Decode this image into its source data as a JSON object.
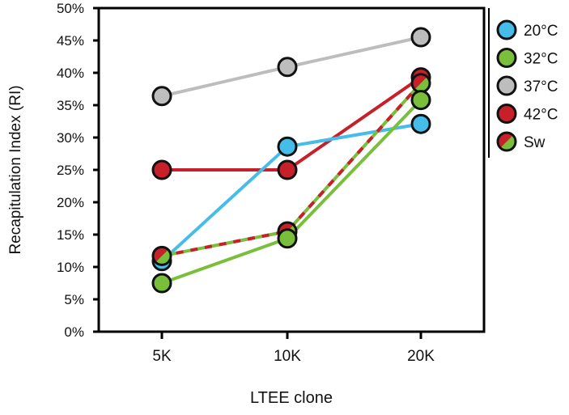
{
  "chart_data": {
    "type": "line",
    "title": "",
    "xlabel": "LTEE clone",
    "ylabel": "Recapitulation Index (RI)",
    "categories": [
      "5K",
      "10K",
      "20K"
    ],
    "ylim": [
      0,
      50
    ],
    "yticks": [
      0,
      5,
      10,
      15,
      20,
      25,
      30,
      35,
      40,
      45,
      50
    ],
    "ytick_labels": [
      "0%",
      "5%",
      "10%",
      "15%",
      "20%",
      "25%",
      "30%",
      "35%",
      "40%",
      "45%",
      "50%"
    ],
    "grid": false,
    "legend_position": "right",
    "series": [
      {
        "name": "37°C",
        "color": "#bdbdbd",
        "values": [
          36.4,
          40.9,
          45.5
        ]
      },
      {
        "name": "42°C",
        "color": "#c8202a",
        "values": [
          25.0,
          25.0,
          39.3
        ]
      },
      {
        "name": "20°C",
        "color": "#45bde8",
        "values": [
          10.9,
          28.6,
          32.1
        ]
      },
      {
        "name": "Sw",
        "color": "#c8202a",
        "color2": "#79bf3c",
        "values": [
          11.7,
          15.5,
          38.4
        ]
      },
      {
        "name": "32°C",
        "color": "#79bf3c",
        "values": [
          7.5,
          14.4,
          35.8
        ]
      }
    ],
    "legend": [
      {
        "name": "20°C",
        "color": "#45bde8"
      },
      {
        "name": "32°C",
        "color": "#79bf3c"
      },
      {
        "name": "37°C",
        "color": "#bdbdbd"
      },
      {
        "name": "42°C",
        "color": "#c8202a"
      },
      {
        "name": "Sw",
        "color": "#c8202a",
        "color2": "#79bf3c"
      }
    ]
  }
}
